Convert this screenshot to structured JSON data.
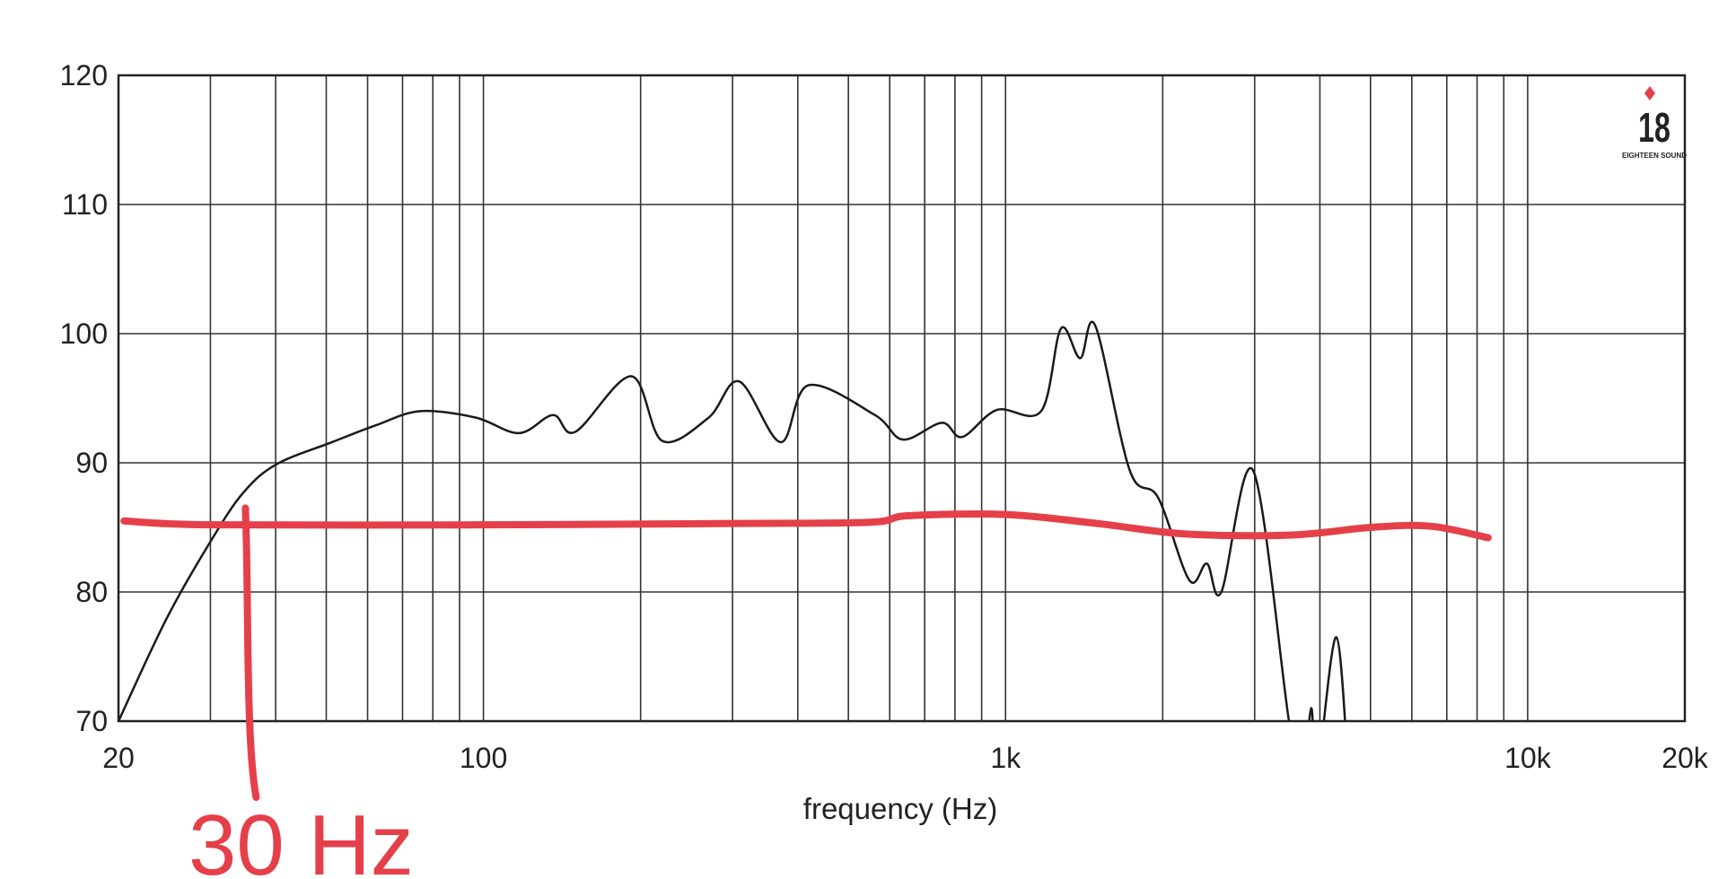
{
  "chart_data": {
    "type": "line",
    "xlabel": "frequency (Hz)",
    "log_x": true,
    "grid": true,
    "xlim": [
      20,
      20000
    ],
    "ylim": [
      70,
      120
    ],
    "xticks": [
      20,
      100,
      {
        "value": 1000,
        "label": "1k"
      },
      {
        "value": 10000,
        "label": "10k"
      },
      {
        "value": 20000,
        "label": "20k"
      }
    ],
    "x_minor_grid": [
      30,
      40,
      50,
      60,
      70,
      80,
      90,
      200,
      300,
      400,
      500,
      600,
      700,
      800,
      900,
      2000,
      3000,
      4000,
      5000,
      6000,
      7000,
      8000,
      9000
    ],
    "yticks": [
      70,
      80,
      90,
      100,
      110,
      120
    ],
    "series": [
      {
        "color": "#1a1a1a",
        "x": [
          20,
          24.7,
          30,
          34.7,
          40.2,
          51.3,
          62.2,
          75.7,
          96.7,
          117,
          136,
          150,
          192,
          220,
          270,
          309,
          371,
          419,
          562,
          636,
          755,
          826,
          963,
          1170,
          1277,
          1390,
          1486,
          1730,
          1960,
          2250,
          2430,
          2590,
          2980,
          3490,
          3700,
          3850,
          3950,
          4300,
          4550
        ],
        "values": [
          70,
          77.9,
          83.9,
          87.7,
          89.9,
          91.6,
          92.9,
          94.0,
          93.5,
          92.3,
          93.7,
          92.4,
          96.7,
          91.7,
          93.5,
          96.3,
          91.6,
          96.0,
          93.7,
          91.8,
          93.1,
          92.0,
          94.1,
          94.0,
          100.4,
          98.1,
          100.6,
          89.4,
          87.3,
          80.9,
          82.2,
          80.0,
          89.4,
          70,
          65,
          71,
          66,
          76.5,
          65
        ]
      }
    ],
    "annotation_line": {
      "color": "#e5404a",
      "x": [
        20.5,
        30,
        100,
        300,
        550,
        650,
        1000,
        1500,
        2200,
        3500,
        5000,
        6500,
        8400
      ],
      "values": [
        85.5,
        85.2,
        85.2,
        85.3,
        85.4,
        85.9,
        86.0,
        85.3,
        84.5,
        84.4,
        85.0,
        85.1,
        84.2
      ]
    },
    "annotation_marker": {
      "x": 35,
      "label": "30 Hz"
    },
    "logo": {
      "number": "18",
      "brand": "EIGHTEEN SOUND"
    }
  }
}
